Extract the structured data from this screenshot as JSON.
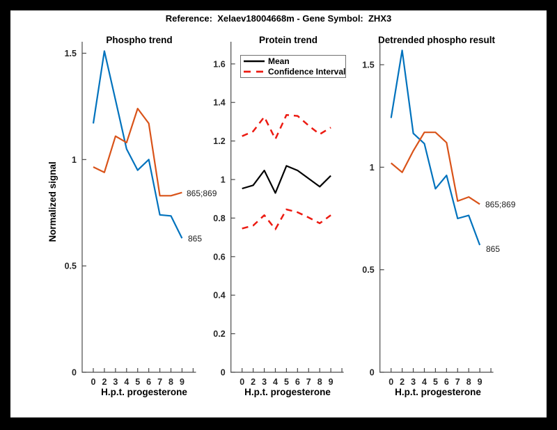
{
  "figure": {
    "title": "Reference:  Xelaev18004668m - Gene Symbol:  ZHX3"
  },
  "colors": {
    "blue": "#0072BD",
    "orange": "#D95319",
    "red": "#EC1B12",
    "black": "#000000",
    "axis": "#4a4a4a"
  },
  "shared": {
    "x_label": "H.p.t. progesterone",
    "y_label": "Normalized signal"
  },
  "chart_data": [
    {
      "type": "line",
      "title": "Phospho trend",
      "xlabel": "H.p.t. progesterone",
      "ylabel": "Normalized signal",
      "categories": [
        "0",
        "2",
        "3",
        "4",
        "5",
        "6",
        "7",
        "8",
        "9"
      ],
      "yticks": [
        0,
        0.5,
        1,
        1.5
      ],
      "yticklabels": [
        "0",
        "0.5",
        "1",
        "1.5"
      ],
      "ylim": [
        0,
        1.554
      ],
      "grid": false,
      "series": [
        {
          "name": "865",
          "color_key": "blue",
          "dash": false,
          "end_label": "865",
          "values": [
            1.17,
            1.51,
            1.28,
            1.05,
            0.95,
            1.0,
            0.74,
            0.735,
            0.63
          ]
        },
        {
          "name": "865;869",
          "color_key": "orange",
          "dash": false,
          "end_label": "865;869",
          "values": [
            0.965,
            0.94,
            1.11,
            1.08,
            1.24,
            1.17,
            0.83,
            0.83,
            0.845
          ]
        }
      ]
    },
    {
      "type": "line",
      "title": "Protein trend",
      "xlabel": "H.p.t. progesterone",
      "categories": [
        "0",
        "2",
        "3",
        "4",
        "5",
        "6",
        "7",
        "8",
        "9"
      ],
      "yticks": [
        0,
        0.2,
        0.4,
        0.6,
        0.8,
        1,
        1.2,
        1.4,
        1.6
      ],
      "yticklabels": [
        "0",
        "0.2",
        "0.4",
        "0.6",
        "0.8",
        "1",
        "1.2",
        "1.4",
        "1.6"
      ],
      "ylim": [
        0,
        1.715
      ],
      "grid": false,
      "legend_position": "top-left",
      "legend": [
        {
          "label": "Mean",
          "color_key": "black",
          "dash": false
        },
        {
          "label": "Confidence Interval",
          "color_key": "red",
          "dash": true
        }
      ],
      "series": [
        {
          "name": "Mean",
          "color_key": "black",
          "dash": false,
          "values": [
            0.953,
            0.97,
            1.047,
            0.93,
            1.071,
            1.047,
            1.005,
            0.963,
            1.02
          ]
        },
        {
          "name": "Confidence Interval upper",
          "color_key": "red",
          "dash": true,
          "values": [
            1.225,
            1.25,
            1.325,
            1.21,
            1.335,
            1.33,
            1.28,
            1.235,
            1.27
          ]
        },
        {
          "name": "Confidence Interval lower",
          "color_key": "red",
          "dash": true,
          "values": [
            0.746,
            0.761,
            0.815,
            0.742,
            0.845,
            0.83,
            0.803,
            0.773,
            0.815
          ]
        }
      ]
    },
    {
      "type": "line",
      "title": "Detrended phospho result",
      "xlabel": "H.p.t. progesterone",
      "categories": [
        "0",
        "2",
        "3",
        "4",
        "5",
        "6",
        "7",
        "8",
        "9"
      ],
      "yticks": [
        0,
        0.5,
        1,
        1.5
      ],
      "yticklabels": [
        "0",
        "0.5",
        "1",
        "1.5"
      ],
      "ylim": [
        0,
        1.612
      ],
      "grid": false,
      "series": [
        {
          "name": "865",
          "color_key": "blue",
          "dash": false,
          "end_label": "865",
          "values": [
            1.24,
            1.57,
            1.165,
            1.115,
            0.895,
            0.96,
            0.75,
            0.765,
            0.62
          ]
        },
        {
          "name": "865;869",
          "color_key": "orange",
          "dash": false,
          "end_label": "865;869",
          "values": [
            1.02,
            0.975,
            1.08,
            1.17,
            1.17,
            1.12,
            0.835,
            0.855,
            0.82
          ]
        }
      ]
    }
  ]
}
